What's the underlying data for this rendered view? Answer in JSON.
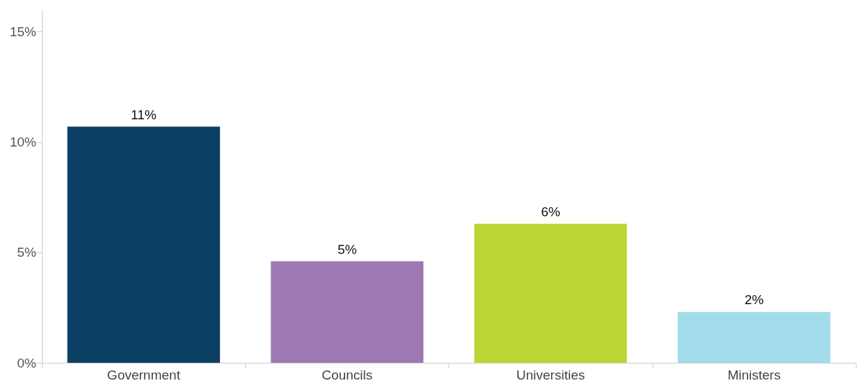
{
  "chart_data": {
    "type": "bar",
    "categories": [
      "Government",
      "Councils",
      "Universities",
      "Ministers"
    ],
    "values": [
      10.7,
      4.6,
      6.3,
      2.3
    ],
    "colors": [
      "#0b3f63",
      "#9e78b3",
      "#bdd435",
      "#a2dbea"
    ],
    "value_labels": [
      "11%",
      "5%",
      "6%",
      "2%"
    ],
    "ylim": [
      0,
      16
    ],
    "yticks": [
      {
        "value": 0,
        "label": "0%"
      },
      {
        "value": 5,
        "label": "5%"
      },
      {
        "value": 10,
        "label": "10%"
      },
      {
        "value": 15,
        "label": "15%"
      }
    ]
  }
}
